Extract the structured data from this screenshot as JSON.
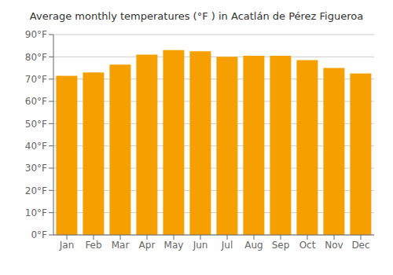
{
  "chart_data": {
    "type": "bar",
    "title": "Average monthly temperatures (°F ) in Acatlán de Pérez Figueroa",
    "categories": [
      "Jan",
      "Feb",
      "Mar",
      "Apr",
      "May",
      "Jun",
      "Jul",
      "Aug",
      "Sep",
      "Oct",
      "Nov",
      "Dec"
    ],
    "values": [
      71.5,
      73.0,
      76.5,
      81.0,
      83.0,
      82.5,
      80.0,
      80.5,
      80.5,
      78.5,
      75.0,
      72.5
    ],
    "color": "#F5A000",
    "ylim": [
      0,
      90
    ],
    "yticks": [
      {
        "value": 0,
        "label": "0°F"
      },
      {
        "value": 10,
        "label": "10°F"
      },
      {
        "value": 20,
        "label": "20°F"
      },
      {
        "value": 30,
        "label": "30°F"
      },
      {
        "value": 40,
        "label": "40°F"
      },
      {
        "value": 50,
        "label": "50°F"
      },
      {
        "value": 60,
        "label": "60°F"
      },
      {
        "value": 70,
        "label": "70°F"
      },
      {
        "value": 80,
        "label": "80°F"
      },
      {
        "value": 90,
        "label": "90°F"
      }
    ],
    "grid": true
  }
}
